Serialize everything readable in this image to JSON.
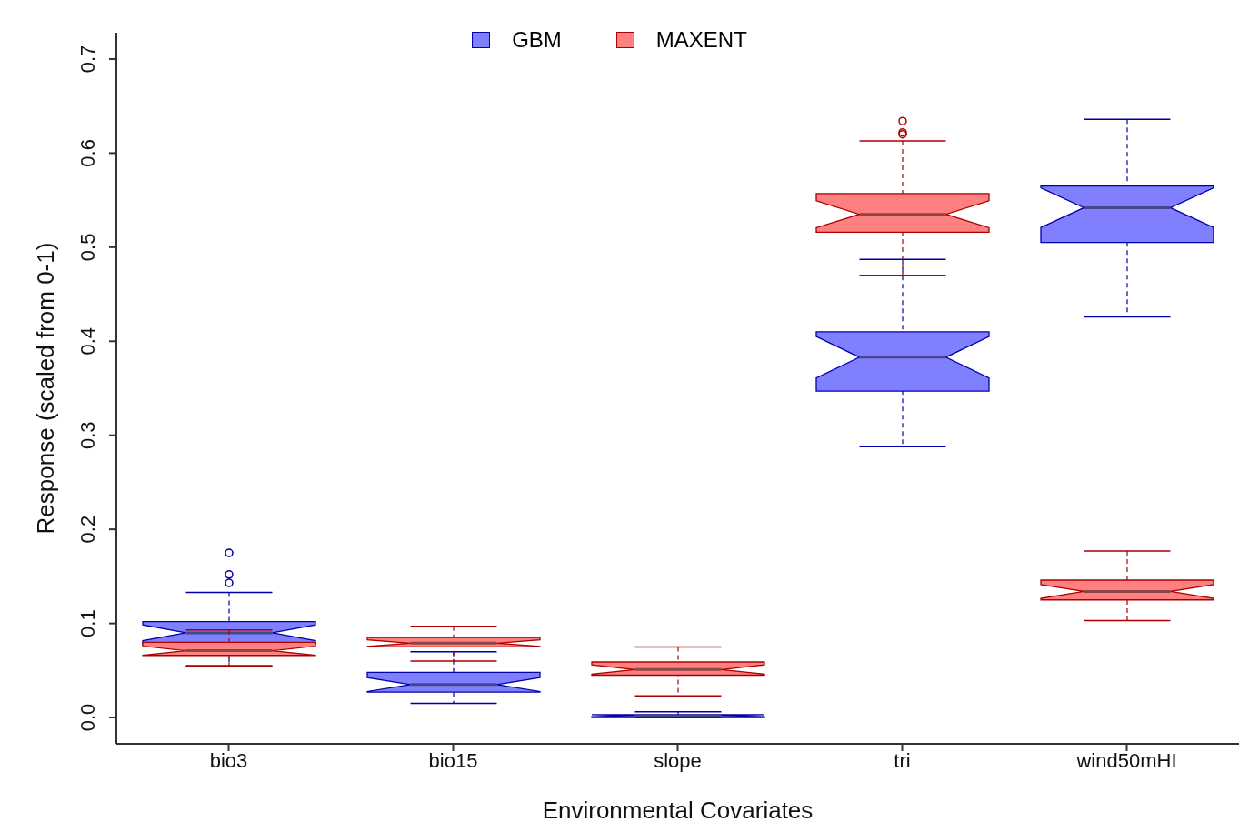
{
  "chart_data": {
    "type": "box",
    "xlabel": "Environmental Covariates",
    "ylabel": "Response (scaled from 0-1)",
    "categories": [
      "bio3",
      "bio15",
      "slope",
      "tri",
      "wind50mHI"
    ],
    "ylim": [
      -0.028,
      0.728
    ],
    "yticks": [
      {
        "value": 0,
        "label": "0.0"
      },
      0.1,
      0.2,
      0.3,
      0.4,
      0.5,
      0.6,
      0.7
    ],
    "legend": "top",
    "grid": false,
    "series": [
      {
        "name": "GBM",
        "color": "#8080ff",
        "boxes": [
          {
            "low": 0.055,
            "q1": 0.078,
            "median": 0.09,
            "q3": 0.102,
            "high": 0.133,
            "outliers": [
              0.175,
              0.152,
              0.143
            ]
          },
          {
            "low": 0.015,
            "q1": 0.027,
            "median": 0.035,
            "q3": 0.048,
            "high": 0.07
          },
          {
            "low": 0.0,
            "q1": 0.0,
            "median": 0.002,
            "q3": 0.003,
            "high": 0.006
          },
          {
            "low": 0.288,
            "q1": 0.347,
            "median": 0.383,
            "q3": 0.41,
            "high": 0.487
          },
          {
            "low": 0.426,
            "q1": 0.505,
            "median": 0.542,
            "q3": 0.565,
            "high": 0.636
          }
        ]
      },
      {
        "name": "MAXENT",
        "color": "#ff8080",
        "boxes": [
          {
            "low": 0.055,
            "q1": 0.066,
            "median": 0.071,
            "q3": 0.08,
            "high": 0.093
          },
          {
            "low": 0.06,
            "q1": 0.075,
            "median": 0.079,
            "q3": 0.085,
            "high": 0.097
          },
          {
            "low": 0.023,
            "q1": 0.045,
            "median": 0.051,
            "q3": 0.059,
            "high": 0.075
          },
          {
            "low": 0.47,
            "q1": 0.516,
            "median": 0.535,
            "q3": 0.557,
            "high": 0.613,
            "outliers": [
              0.634,
              0.622,
              0.62
            ]
          },
          {
            "low": 0.103,
            "q1": 0.125,
            "median": 0.134,
            "q3": 0.146,
            "high": 0.177
          }
        ]
      }
    ]
  }
}
